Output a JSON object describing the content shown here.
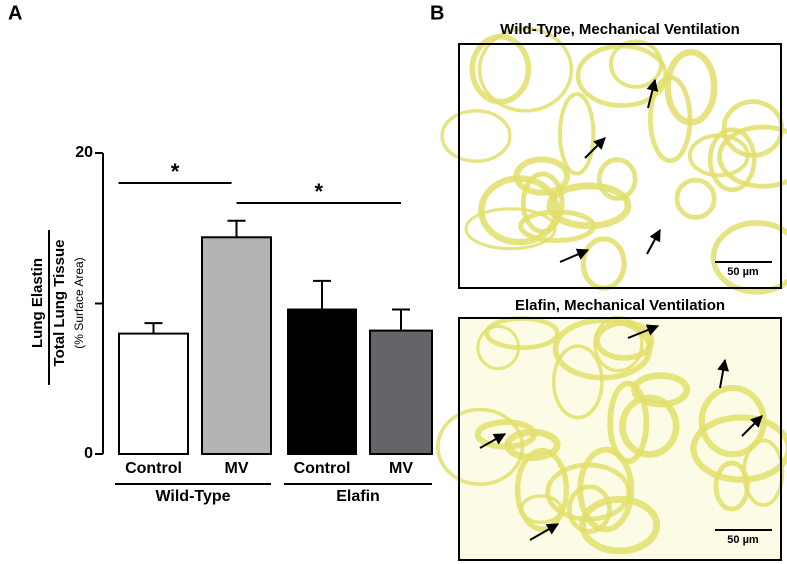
{
  "chart_data": {
    "type": "bar",
    "panel_label": "A",
    "ylabel_numerator": "Lung Elastin",
    "ylabel_denominator": "Total Lung Tissue",
    "ylabel_unit": "(% Surface Area)",
    "categories": [
      "Control",
      "MV",
      "Control",
      "MV"
    ],
    "values": [
      8.0,
      14.4,
      9.6,
      8.2
    ],
    "errors": [
      0.7,
      1.1,
      1.9,
      1.4
    ],
    "colors": [
      "#ffffff",
      "#b3b4b6",
      "#000000",
      "#646569"
    ],
    "groups": [
      {
        "name": "Wild-Type",
        "members": [
          0,
          1
        ]
      },
      {
        "name": "Elafin",
        "members": [
          2,
          3
        ]
      }
    ],
    "significance": [
      {
        "from": 0,
        "to": 1,
        "label": "*"
      },
      {
        "from": 1,
        "to": 3,
        "label": "*"
      }
    ],
    "ylim": [
      0,
      20
    ],
    "yticks": [
      0,
      20
    ],
    "minor_yticks": [
      10
    ]
  },
  "panel_b": {
    "label": "B",
    "images": [
      {
        "title": "Wild-Type, Mechanical Ventilation",
        "scale_bar": "50 µm"
      },
      {
        "title": "Elafin, Mechanical Ventilation",
        "scale_bar": "50 µm"
      }
    ]
  }
}
